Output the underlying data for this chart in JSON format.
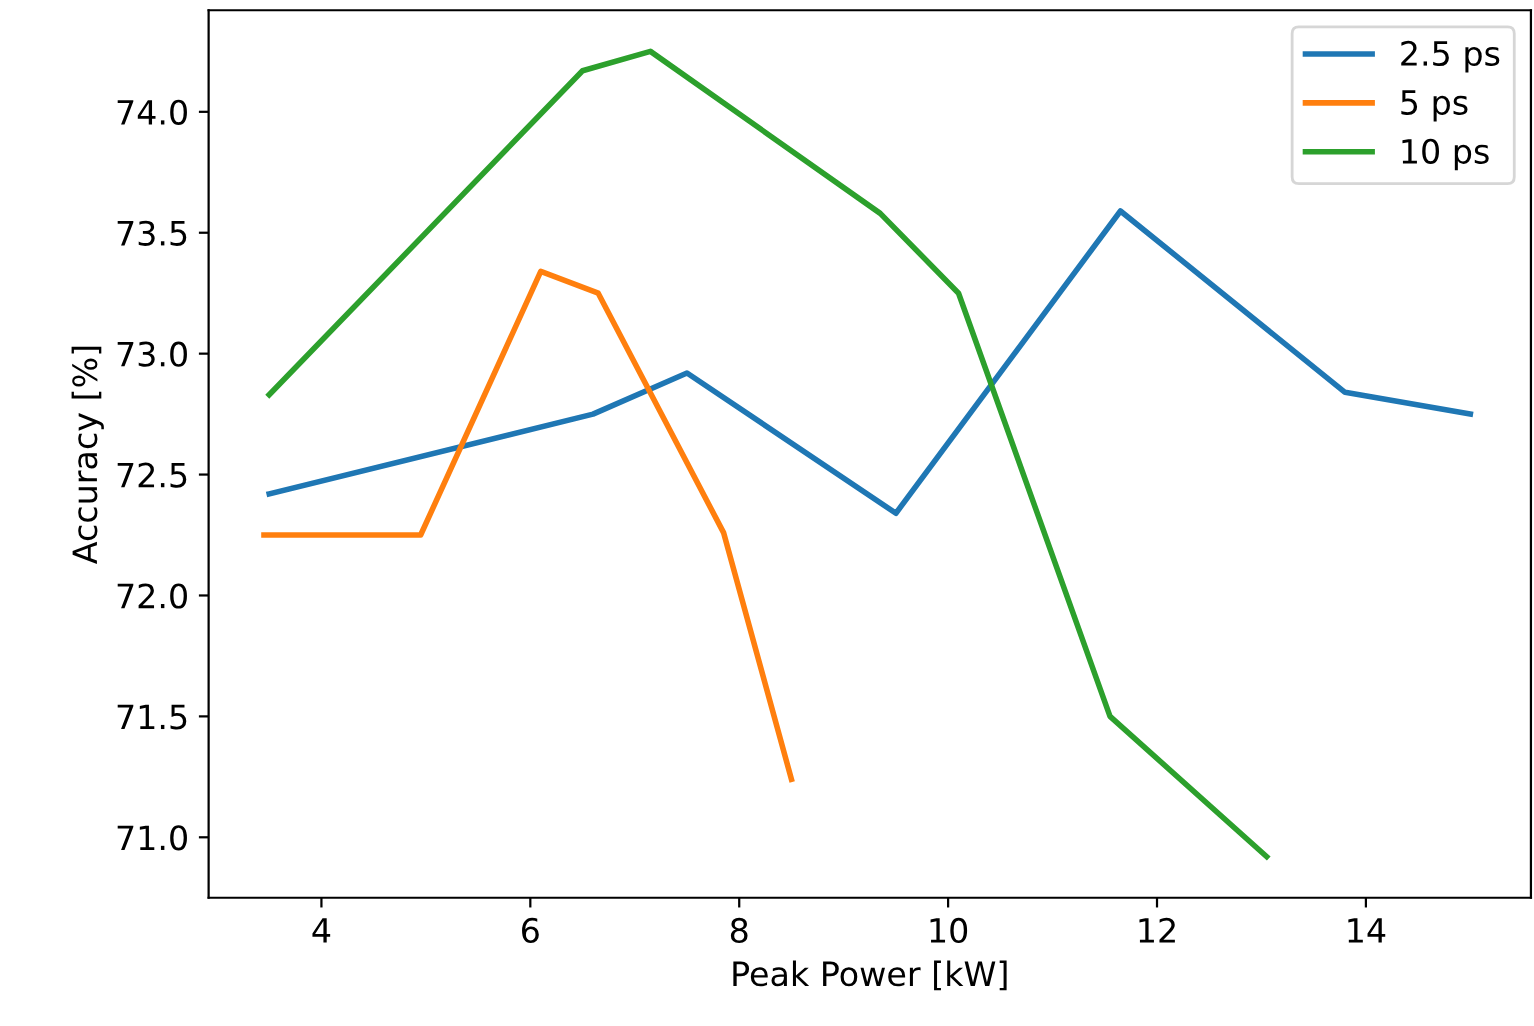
{
  "chart_data": {
    "type": "line",
    "xlabel": "Peak Power [kW]",
    "ylabel": "Accuracy [%]",
    "series": [
      {
        "name": "2.5 ps",
        "color": "#1f77b4",
        "x": [
          3.5,
          6.6,
          7.5,
          9.5,
          11.65,
          13.8,
          15
        ],
        "values": [
          72.42,
          72.75,
          72.92,
          72.34,
          73.59,
          72.84,
          72.75
        ]
      },
      {
        "name": "5 ps",
        "color": "#ff7f0e",
        "x": [
          3.45,
          4.95,
          6.1,
          6.65,
          7.85,
          8.5
        ],
        "values": [
          72.25,
          72.25,
          73.34,
          73.25,
          72.26,
          71.24
        ]
      },
      {
        "name": "10 ps",
        "color": "#2ca02c",
        "x": [
          3.5,
          6.5,
          7.15,
          9.35,
          10.1,
          11.55,
          13.05
        ],
        "values": [
          72.83,
          74.17,
          74.25,
          73.58,
          73.25,
          71.5,
          70.92
        ]
      }
    ],
    "xlim": [
      2.92,
      15.58
    ],
    "ylim": [
      70.75,
      74.42
    ],
    "xticks": [
      4,
      6,
      8,
      10,
      12,
      14
    ],
    "yticks": [
      {
        "value": 71,
        "label": "71.0"
      },
      {
        "value": 71.5,
        "label": "71.5"
      },
      {
        "value": 72,
        "label": "72.0"
      },
      {
        "value": 72.5,
        "label": "72.5"
      },
      {
        "value": 73,
        "label": "73.0"
      },
      {
        "value": 73.5,
        "label": "73.5"
      },
      {
        "value": 74,
        "label": "74.0"
      }
    ],
    "grid": false,
    "legend": "top right"
  }
}
